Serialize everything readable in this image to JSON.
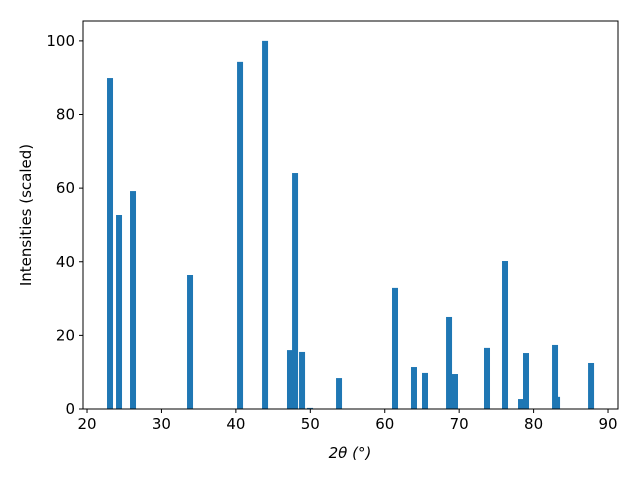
{
  "chart_data": {
    "type": "bar",
    "xlabel": "2θ (°)",
    "ylabel": "Intensities (scaled)",
    "x": [
      23.09,
      24.3,
      26.18,
      33.84,
      40.56,
      43.92,
      47.27,
      47.95,
      48.89,
      49.96,
      53.86,
      61.38,
      63.93,
      65.41,
      68.64,
      69.44,
      73.74,
      76.16,
      78.31,
      78.98,
      82.88,
      83.15,
      87.72
    ],
    "values": [
      89.9,
      52.7,
      59.2,
      36.4,
      94.3,
      100,
      16.0,
      64.1,
      15.5,
      0.3,
      8.4,
      32.9,
      11.4,
      9.8,
      25.0,
      9.5,
      16.6,
      40.2,
      2.7,
      15.2,
      17.4,
      3.3,
      12.5
    ],
    "color": "#1f77b4",
    "xlim": [
      19.46,
      91.34
    ],
    "xticks": [
      20,
      30,
      40,
      50,
      60,
      70,
      80,
      90
    ],
    "ylim": [
      0,
      105.4
    ],
    "yticks": [
      0,
      20,
      40,
      60,
      80,
      100
    ],
    "grid": false
  }
}
